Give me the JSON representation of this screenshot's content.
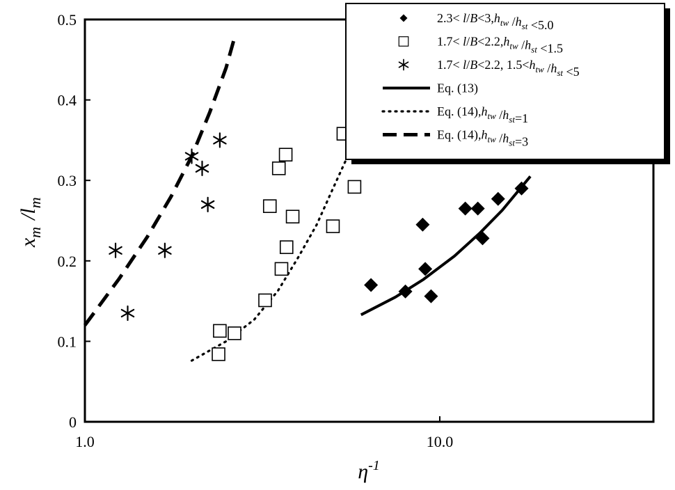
{
  "chart_data": {
    "type": "scatter",
    "title": "",
    "xlabel": "η",
    "xlabel_sup": "-1",
    "ylabel_parts": [
      {
        "t": "x",
        "sub": "m"
      },
      {
        "t": " /",
        "sub": ""
      },
      {
        "t": "l",
        "sub": "m"
      }
    ],
    "xscale": "log",
    "xlim": [
      1.0,
      40.0
    ],
    "ylim": [
      0,
      0.5
    ],
    "xticks": [
      1.0,
      10.0
    ],
    "xtick_labels": [
      "1.0",
      "10.0"
    ],
    "yticks": [
      0,
      0.1,
      0.2,
      0.3,
      0.4,
      0.5
    ],
    "ytick_labels": [
      "0",
      "0.1",
      "0.2",
      "0.3",
      "0.4",
      "0.5"
    ],
    "grid": false,
    "legend_position": "top-right",
    "legend": [
      {
        "marker": "diamond",
        "text": "2.3< l/B<3,            h_tw /h_st <5.0"
      },
      {
        "marker": "square",
        "text": "1.7< l/B<2.2,        h_tw /h_st <1.5"
      },
      {
        "marker": "asterisk",
        "text": "1.7< l/B<2.2, 1.5<h_tw /h_st <5"
      },
      {
        "marker": "solid",
        "text": "Eq. (13)"
      },
      {
        "marker": "dotted",
        "text": "Eq. (14),     h_tw /h_st=1"
      },
      {
        "marker": "dashed",
        "text": "Eq. (14),     h_tw /h_st=3"
      }
    ],
    "legend_rich": [
      [
        {
          "t": "2.3< "
        },
        {
          "t": "l",
          "i": true
        },
        {
          "t": "/"
        },
        {
          "t": "B",
          "i": true
        },
        {
          "t": "<3,",
          "gap": 75
        },
        {
          "t": "h",
          "i": true
        },
        {
          "t": "tw",
          "sub": true,
          "i": true
        },
        {
          "t": " /"
        },
        {
          "t": "h",
          "i": true
        },
        {
          "t": "st",
          "sub": true,
          "i": true
        },
        {
          "t": " <5.0"
        }
      ],
      [
        {
          "t": "1.7< "
        },
        {
          "t": "l",
          "i": true
        },
        {
          "t": "/"
        },
        {
          "t": "B",
          "i": true
        },
        {
          "t": "<2.2,",
          "gap": 38
        },
        {
          "t": "h",
          "i": true
        },
        {
          "t": "tw",
          "sub": true,
          "i": true
        },
        {
          "t": " /"
        },
        {
          "t": "h",
          "i": true
        },
        {
          "t": "st",
          "sub": true,
          "i": true
        },
        {
          "t": " <1.5"
        }
      ],
      [
        {
          "t": "1.7< "
        },
        {
          "t": "l",
          "i": true
        },
        {
          "t": "/"
        },
        {
          "t": "B",
          "i": true
        },
        {
          "t": "<2.2, 1.5<"
        },
        {
          "t": "h",
          "i": true
        },
        {
          "t": "tw",
          "sub": true,
          "i": true
        },
        {
          "t": " /"
        },
        {
          "t": "h",
          "i": true
        },
        {
          "t": "st",
          "sub": true,
          "i": true
        },
        {
          "t": " <5"
        }
      ],
      [
        {
          "t": "Eq. (13)"
        }
      ],
      [
        {
          "t": "Eq. (14),",
          "gap": 36
        },
        {
          "t": "h",
          "i": true
        },
        {
          "t": "tw",
          "sub": true,
          "i": true
        },
        {
          "t": " /"
        },
        {
          "t": "h",
          "i": true
        },
        {
          "t": "st",
          "sub": true,
          "i": true
        },
        {
          "t": "=1"
        }
      ],
      [
        {
          "t": "Eq. (14),",
          "gap": 36
        },
        {
          "t": "h",
          "i": true
        },
        {
          "t": "tw",
          "sub": true,
          "i": true
        },
        {
          "t": " /"
        },
        {
          "t": "h",
          "i": true
        },
        {
          "t": "st",
          "sub": true,
          "i": true
        },
        {
          "t": "=3"
        }
      ]
    ],
    "series": [
      {
        "name": "2.3< l/B<3, h_tw /h_st <5.0",
        "marker": "diamond",
        "points": [
          {
            "x": 6.4,
            "y": 0.17
          },
          {
            "x": 8.0,
            "y": 0.162
          },
          {
            "x": 8.95,
            "y": 0.245
          },
          {
            "x": 9.1,
            "y": 0.19
          },
          {
            "x": 9.45,
            "y": 0.156
          },
          {
            "x": 11.8,
            "y": 0.265
          },
          {
            "x": 12.8,
            "y": 0.265
          },
          {
            "x": 13.2,
            "y": 0.228
          },
          {
            "x": 14.6,
            "y": 0.277
          },
          {
            "x": 17.0,
            "y": 0.29
          }
        ]
      },
      {
        "name": "1.7< l/B<2.2, h_tw /h_st <1.5",
        "marker": "square",
        "points": [
          {
            "x": 2.38,
            "y": 0.084
          },
          {
            "x": 2.4,
            "y": 0.113
          },
          {
            "x": 2.64,
            "y": 0.11
          },
          {
            "x": 3.22,
            "y": 0.151
          },
          {
            "x": 3.32,
            "y": 0.268
          },
          {
            "x": 3.52,
            "y": 0.315
          },
          {
            "x": 3.58,
            "y": 0.19
          },
          {
            "x": 3.68,
            "y": 0.332
          },
          {
            "x": 3.7,
            "y": 0.217
          },
          {
            "x": 3.85,
            "y": 0.255
          },
          {
            "x": 5.0,
            "y": 0.243
          },
          {
            "x": 5.35,
            "y": 0.358
          },
          {
            "x": 5.75,
            "y": 0.292
          }
        ]
      },
      {
        "name": "1.7< l/B<2.2, 1.5<h_tw /h_st <5",
        "marker": "asterisk",
        "points": [
          {
            "x": 1.22,
            "y": 0.213
          },
          {
            "x": 1.32,
            "y": 0.135
          },
          {
            "x": 1.68,
            "y": 0.213
          },
          {
            "x": 2.0,
            "y": 0.33
          },
          {
            "x": 2.14,
            "y": 0.315
          },
          {
            "x": 2.22,
            "y": 0.27
          },
          {
            "x": 2.4,
            "y": 0.35
          }
        ]
      }
    ],
    "curves": [
      {
        "name": "Eq. (13)",
        "style": "solid",
        "x": [
          6.0,
          7.5,
          9.0,
          11.0,
          13.0,
          15.0,
          18.0
        ],
        "y": [
          0.133,
          0.155,
          0.177,
          0.206,
          0.235,
          0.263,
          0.305
        ]
      },
      {
        "name": "Eq. (14), h_tw /h_st=1",
        "style": "dotted",
        "x": [
          2.0,
          2.5,
          3.0,
          3.5,
          4.0,
          4.5,
          5.0,
          5.5,
          5.9
        ],
        "y": [
          0.076,
          0.1,
          0.127,
          0.163,
          0.205,
          0.245,
          0.29,
          0.33,
          0.36
        ]
      },
      {
        "name": "Eq. (14), h_tw /h_st=3",
        "style": "dashed",
        "x": [
          1.0,
          1.25,
          1.5,
          1.75,
          2.0,
          2.25,
          2.5,
          2.65
        ],
        "y": [
          0.12,
          0.178,
          0.23,
          0.28,
          0.33,
          0.385,
          0.44,
          0.48
        ]
      }
    ]
  }
}
